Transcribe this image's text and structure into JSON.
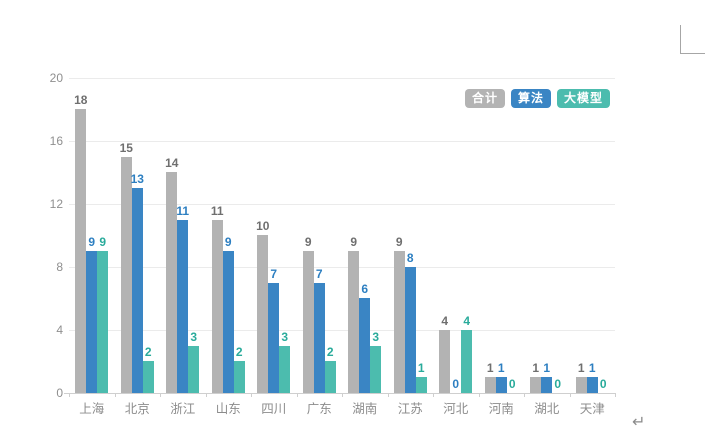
{
  "page": {
    "background": "#ffffff",
    "paragraph_mark": "↵"
  },
  "chart_data": {
    "type": "bar",
    "title": "",
    "xlabel": "",
    "ylabel": "",
    "categories": [
      "上海",
      "北京",
      "浙江",
      "山东",
      "四川",
      "广东",
      "湖南",
      "江苏",
      "河北",
      "河南",
      "湖北",
      "天津"
    ],
    "series": [
      {
        "name": "合计",
        "color": "#b3b3b3",
        "label_color": "#6f6f6f",
        "values": [
          18,
          15,
          14,
          11,
          10,
          9,
          9,
          9,
          4,
          1,
          1,
          1
        ]
      },
      {
        "name": "算法",
        "color": "#3a85c4",
        "label_color": "#2d7fc1",
        "values": [
          9,
          13,
          11,
          9,
          7,
          7,
          6,
          8,
          0,
          1,
          1,
          1
        ]
      },
      {
        "name": "大模型",
        "color": "#4cbcae",
        "label_color": "#29ab9b",
        "values": [
          9,
          2,
          3,
          2,
          3,
          2,
          3,
          1,
          4,
          0,
          0,
          0
        ]
      }
    ],
    "ylim": [
      0,
      20
    ],
    "yticks": [
      0,
      4,
      8,
      12,
      16,
      20
    ],
    "grid": true,
    "legend_position": "top-right",
    "axis_label_color": "#8c8c8c",
    "gridline_color": "#ebebeb",
    "axis_line_color": "#cfcfcf"
  }
}
